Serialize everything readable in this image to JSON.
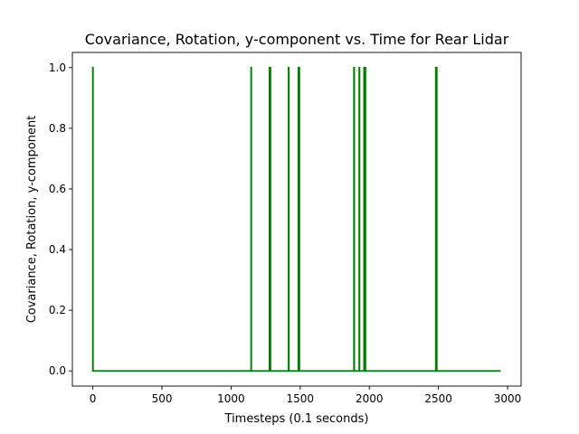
{
  "chart_data": {
    "type": "line",
    "title": "Covariance, Rotation, y-component vs. Time for Rear Lidar",
    "xlabel": "Timesteps (0.1 seconds)",
    "ylabel": "Covariance, Rotation, y-component",
    "xlim": [
      -148,
      3098
    ],
    "ylim": [
      -0.05,
      1.05
    ],
    "x_ticks": [
      0,
      500,
      1000,
      1500,
      2000,
      2500,
      3000
    ],
    "y_ticks": [
      0.0,
      0.2,
      0.4,
      0.6,
      0.8,
      1.0
    ],
    "x_tick_labels": [
      "0",
      "500",
      "1000",
      "1500",
      "2000",
      "2500",
      "3000"
    ],
    "y_tick_labels": [
      "0.0",
      "0.2",
      "0.4",
      "0.6",
      "0.8",
      "1.0"
    ],
    "grid": false,
    "series": [
      {
        "color": "#008000",
        "x": [
          0,
          0,
          1,
          1,
          1145,
          1145,
          1146,
          1146,
          1278,
          1278,
          1280,
          1280,
          1283,
          1283,
          1285,
          1285,
          1416,
          1416,
          1418,
          1418,
          1487,
          1487,
          1489,
          1489,
          1492,
          1492,
          1494,
          1494,
          1889,
          1889,
          1891,
          1891,
          1927,
          1927,
          1929,
          1929,
          1962,
          1962,
          1964,
          1964,
          1970,
          1970,
          1972,
          1972,
          2481,
          2481,
          2483,
          2483,
          2486,
          2486,
          2488,
          2488,
          2950
        ],
        "y": [
          0,
          1,
          1,
          0,
          0,
          1,
          1,
          0,
          0,
          1,
          1,
          0,
          0,
          1,
          1,
          0,
          0,
          1,
          1,
          0,
          0,
          1,
          1,
          0,
          0,
          1,
          1,
          0,
          0,
          1,
          1,
          0,
          0,
          1,
          1,
          0,
          0,
          1,
          1,
          0,
          0,
          1,
          1,
          0,
          0,
          1,
          1,
          0,
          0,
          1,
          1,
          0,
          0
        ]
      }
    ]
  }
}
